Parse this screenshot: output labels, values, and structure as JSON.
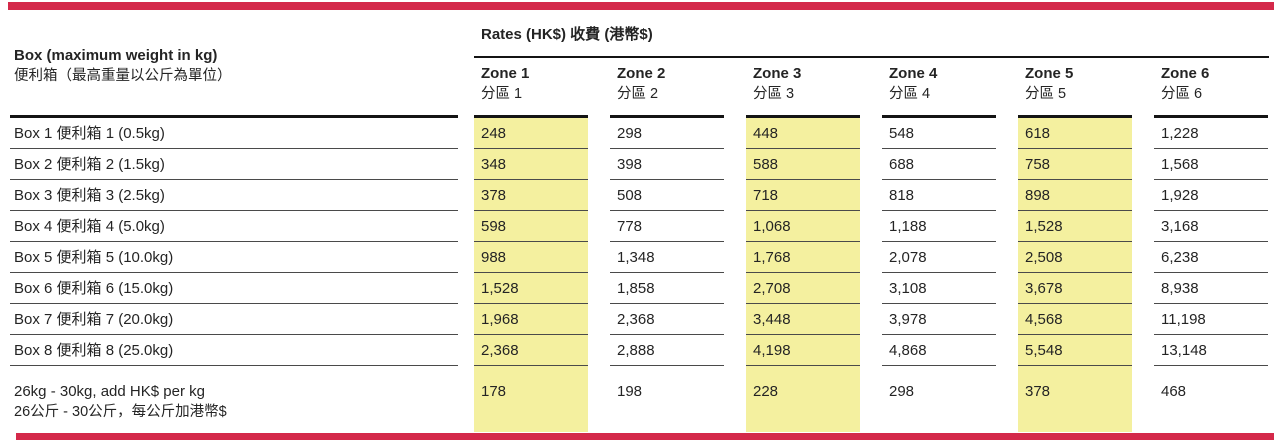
{
  "title": {
    "rates_header": "Rates (HK$) 收費 (港幣$)"
  },
  "left_header": {
    "en": "Box (maximum weight in kg)",
    "zh": "便利箱（最高重量以公斤為單位）"
  },
  "zones": [
    {
      "en": "Zone 1",
      "zh": "分區 1"
    },
    {
      "en": "Zone 2",
      "zh": "分區 2"
    },
    {
      "en": "Zone 3",
      "zh": "分區 3"
    },
    {
      "en": "Zone 4",
      "zh": "分區 4"
    },
    {
      "en": "Zone 5",
      "zh": "分區 5"
    },
    {
      "en": "Zone 6",
      "zh": "分區 6"
    }
  ],
  "table": {
    "rows": [
      {
        "label": "Box 1 便利箱 1 (0.5kg)",
        "values": [
          "248",
          "298",
          "448",
          "548",
          "618",
          "1,228"
        ]
      },
      {
        "label": "Box 2 便利箱 2 (1.5kg)",
        "values": [
          "348",
          "398",
          "588",
          "688",
          "758",
          "1,568"
        ]
      },
      {
        "label": "Box 3 便利箱 3 (2.5kg)",
        "values": [
          "378",
          "508",
          "718",
          "818",
          "898",
          "1,928"
        ]
      },
      {
        "label": "Box 4 便利箱 4 (5.0kg)",
        "values": [
          "598",
          "778",
          "1,068",
          "1,188",
          "1,528",
          "3,168"
        ]
      },
      {
        "label": "Box 5 便利箱 5 (10.0kg)",
        "values": [
          "988",
          "1,348",
          "1,768",
          "2,078",
          "2,508",
          "6,238"
        ]
      },
      {
        "label": "Box 6 便利箱 6 (15.0kg)",
        "values": [
          "1,528",
          "1,858",
          "2,708",
          "3,108",
          "3,678",
          "8,938"
        ]
      },
      {
        "label": "Box 7 便利箱 7 (20.0kg)",
        "values": [
          "1,968",
          "2,368",
          "3,448",
          "3,978",
          "4,568",
          "11,198"
        ]
      },
      {
        "label": "Box 8 便利箱 8 (25.0kg)",
        "values": [
          "2,368",
          "2,888",
          "4,198",
          "4,868",
          "5,548",
          "13,148"
        ]
      },
      {
        "label": "26kg - 30kg, add HK$ per kg",
        "label_zh": "26公斤 - 30公斤，每公斤加港幣$",
        "values": [
          "178",
          "198",
          "228",
          "298",
          "378",
          "468"
        ]
      }
    ]
  },
  "colors": {
    "accent_red": "#d4294a",
    "highlight_yellow": "#f4f09f"
  }
}
